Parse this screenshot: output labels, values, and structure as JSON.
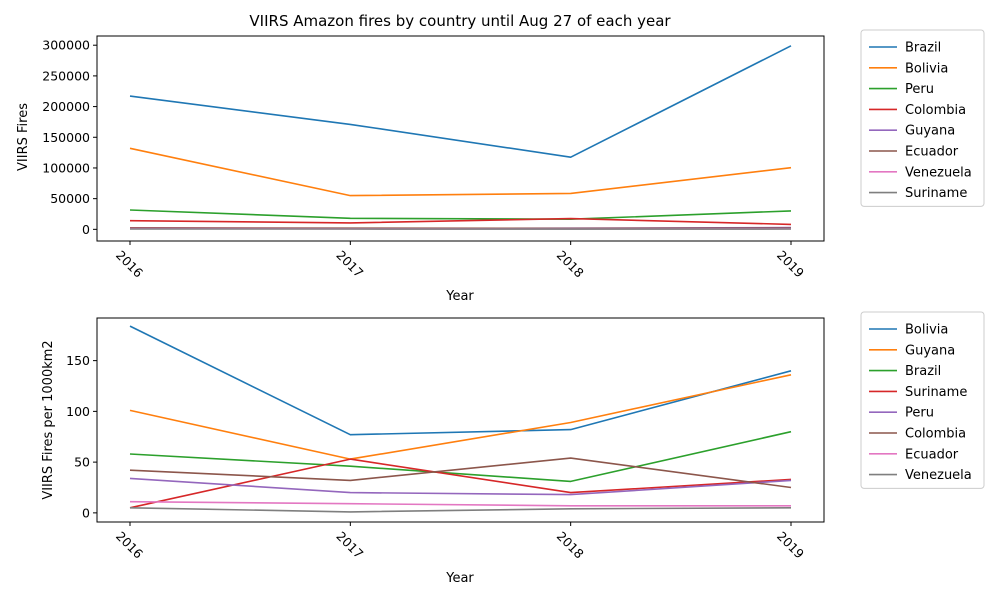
{
  "chart_data": [
    {
      "type": "line",
      "title": "VIIRS Amazon fires by country until Aug 27 of each year",
      "xlabel": "Year",
      "ylabel": "VIIRS Fires",
      "x": [
        "2016",
        "2017",
        "2018",
        "2019"
      ],
      "ylim": [
        -19000,
        315000
      ],
      "yticks": [
        0,
        50000,
        100000,
        150000,
        200000,
        250000,
        300000
      ],
      "ytick_labels": [
        "0",
        "50000",
        "100000",
        "150000",
        "200000",
        "250000",
        "300000"
      ],
      "grid": false,
      "legend_position": "outside-right",
      "series": [
        {
          "name": "Brazil",
          "color": "#1f77b4",
          "values": [
            217000,
            171000,
            117500,
            299000
          ]
        },
        {
          "name": "Bolivia",
          "color": "#ff7f0e",
          "values": [
            132000,
            55000,
            58500,
            100500
          ]
        },
        {
          "name": "Peru",
          "color": "#2ca02c",
          "values": [
            31500,
            18000,
            16500,
            30000
          ]
        },
        {
          "name": "Colombia",
          "color": "#d62728",
          "values": [
            14000,
            10500,
            17500,
            8000
          ]
        },
        {
          "name": "Guyana",
          "color": "#9467bd",
          "values": [
            2100,
            1100,
            1800,
            2800
          ]
        },
        {
          "name": "Ecuador",
          "color": "#8c564b",
          "values": [
            2500,
            1800,
            1500,
            1900
          ]
        },
        {
          "name": "Venezuela",
          "color": "#e377c2",
          "values": [
            1200,
            800,
            700,
            900
          ]
        },
        {
          "name": "Suriname",
          "color": "#7f7f7f",
          "values": [
            600,
            500,
            400,
            600
          ]
        }
      ]
    },
    {
      "type": "line",
      "title": "",
      "xlabel": "Year",
      "ylabel": "VIIRS Fires per 1000km2",
      "x": [
        "2016",
        "2017",
        "2018",
        "2019"
      ],
      "ylim": [
        -9,
        192
      ],
      "yticks": [
        0,
        50,
        100,
        150
      ],
      "ytick_labels": [
        "0",
        "50",
        "100",
        "150"
      ],
      "grid": false,
      "legend_position": "outside-right",
      "series": [
        {
          "name": "Bolivia",
          "color": "#1f77b4",
          "values": [
            184,
            77,
            82,
            140
          ]
        },
        {
          "name": "Guyana",
          "color": "#ff7f0e",
          "values": [
            101,
            53,
            89,
            136
          ]
        },
        {
          "name": "Brazil",
          "color": "#2ca02c",
          "values": [
            58,
            46,
            31,
            80
          ]
        },
        {
          "name": "Suriname",
          "color": "#d62728",
          "values": [
            5,
            53,
            20,
            33
          ]
        },
        {
          "name": "Peru",
          "color": "#9467bd",
          "values": [
            34,
            20,
            18,
            32
          ]
        },
        {
          "name": "Colombia",
          "color": "#8c564b",
          "values": [
            42,
            32,
            54,
            25
          ]
        },
        {
          "name": "Ecuador",
          "color": "#e377c2",
          "values": [
            11,
            9,
            7,
            7
          ]
        },
        {
          "name": "Venezuela",
          "color": "#7f7f7f",
          "values": [
            5,
            1,
            4,
            5
          ]
        }
      ]
    }
  ]
}
